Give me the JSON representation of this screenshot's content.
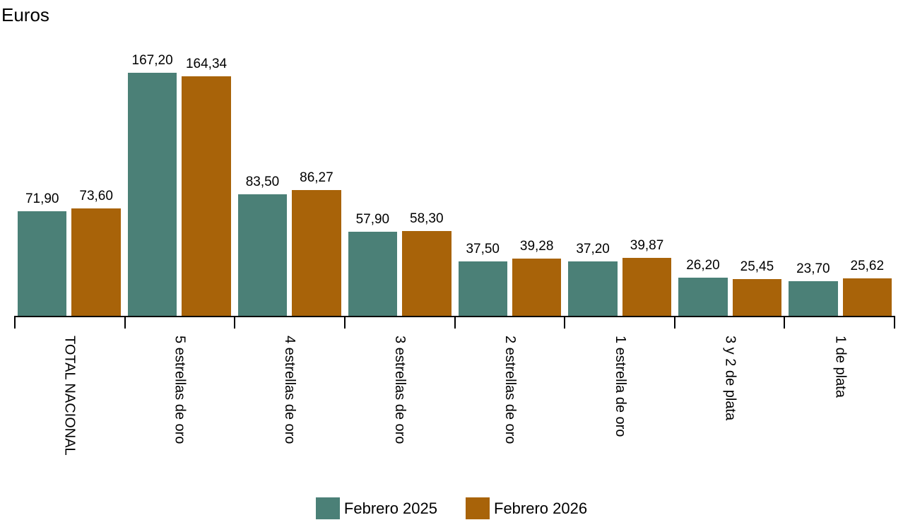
{
  "chart_data": {
    "type": "bar",
    "title": "",
    "unit_label": "Euros",
    "xlabel": "",
    "ylabel": "Euros",
    "categories": [
      "TOTAL NACIONAL",
      "5 estrellas de oro",
      "4 estrellas de oro",
      "3 estrellas de oro",
      "2 estrellas de oro",
      "1 estrella de oro",
      "3 y 2 de plata",
      "1 de plata"
    ],
    "series": [
      {
        "name": "Febrero 2025",
        "color": "#4b8077",
        "values": [
          71.9,
          167.2,
          83.5,
          57.9,
          37.5,
          37.2,
          26.2,
          23.7
        ]
      },
      {
        "name": "Febrero 2026",
        "color": "#a86309",
        "values": [
          73.6,
          164.34,
          86.27,
          58.3,
          39.28,
          39.87,
          25.45,
          25.62
        ]
      }
    ],
    "value_labels_shown": true,
    "decimal_separator": ",",
    "ylim": [
      0,
      190
    ],
    "grid": false,
    "y_axis_shown": false,
    "legend_position": "bottom-center",
    "x_tick_label_rotation_deg": 90,
    "axis_color": "#000000",
    "text_color": "#000000"
  }
}
